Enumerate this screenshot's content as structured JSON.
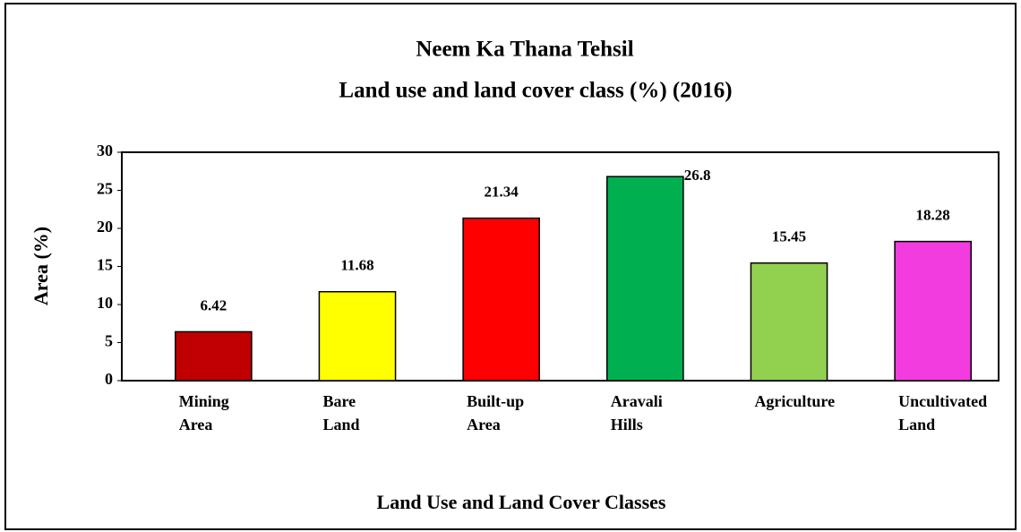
{
  "chart_data": {
    "type": "bar",
    "title": "Neem Ka Thana Tehsil",
    "subtitle": "Land use and land cover class (%) (2016)",
    "x_label": "Land Use and Land Cover Classes",
    "y_label": "Area (%)",
    "categories": [
      "Mining Area",
      "Bare Land",
      "Built-up Area",
      "Aravali Hills",
      "Agriculture",
      "Uncultivated Land"
    ],
    "values": [
      6.42,
      11.68,
      21.34,
      26.8,
      15.45,
      18.28
    ],
    "colors": [
      "#c00000",
      "#ffff00",
      "#ff0000",
      "#00b050",
      "#92d050",
      "#f23ce0"
    ],
    "ylim": [
      0,
      30
    ],
    "yticks": [
      0,
      5,
      10,
      15,
      20,
      25,
      30
    ]
  }
}
